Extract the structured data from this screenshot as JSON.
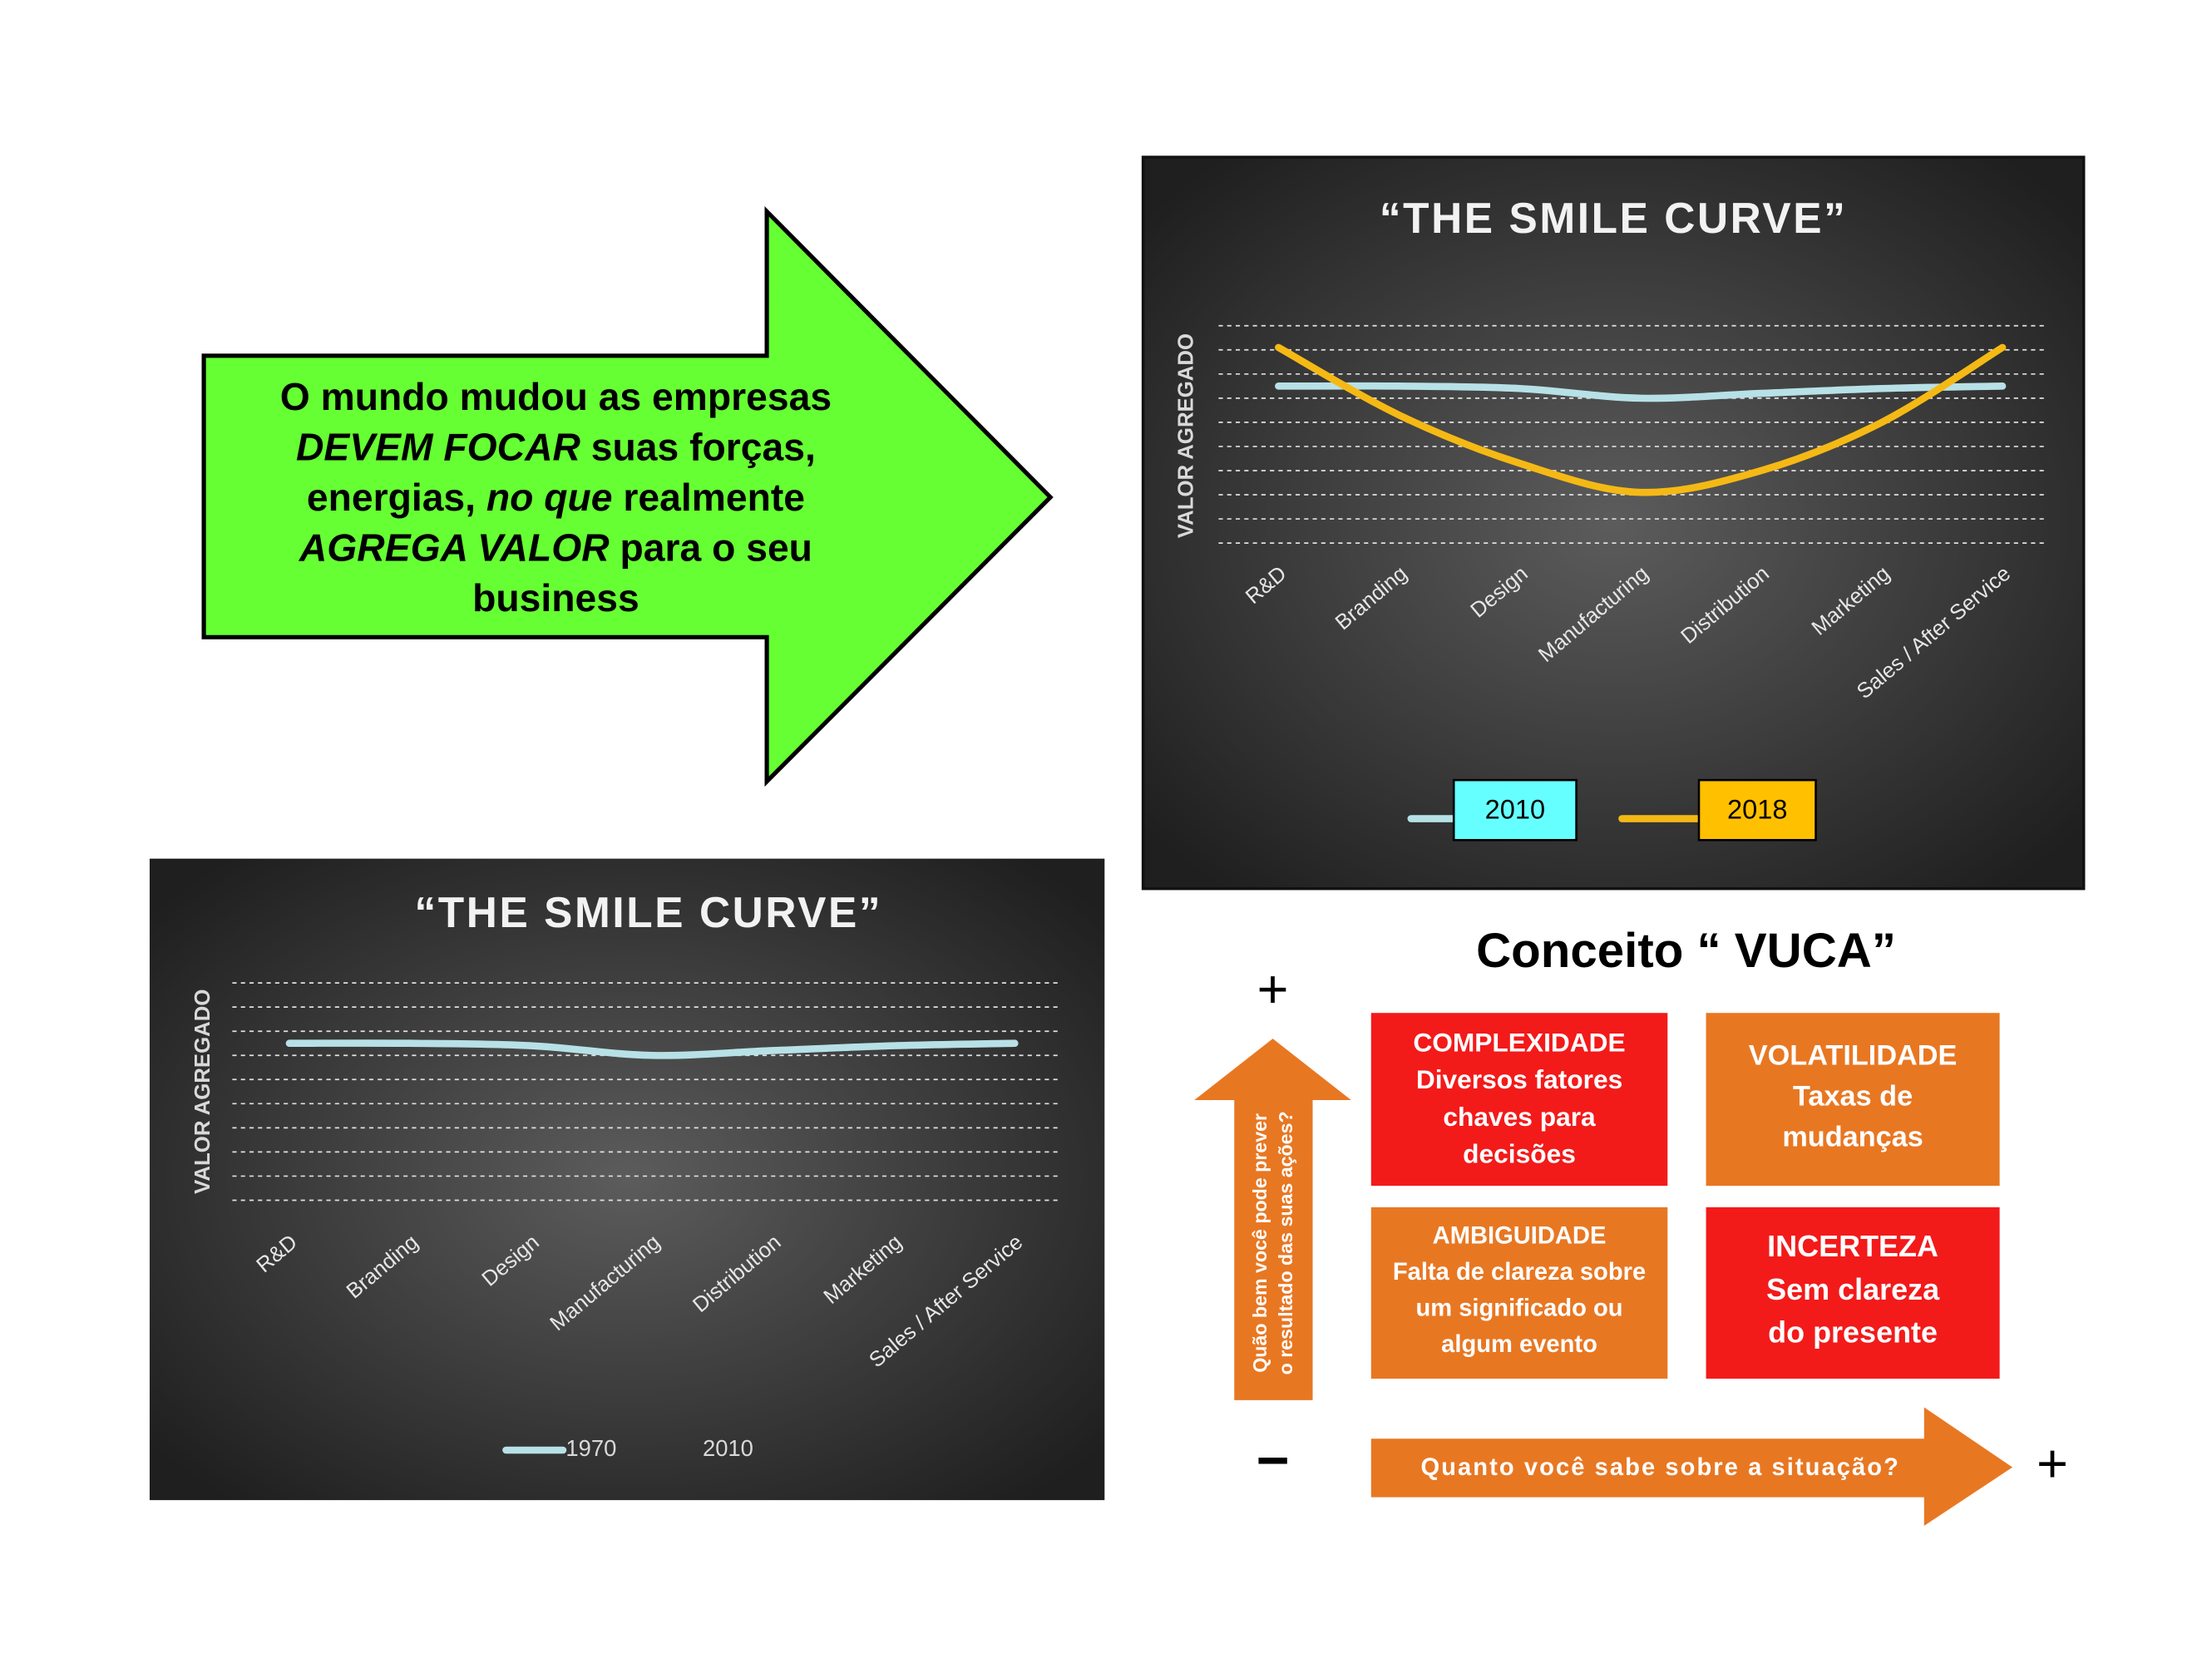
{
  "callout": {
    "lines": [
      [
        {
          "text": "O mundo mudou as empresas",
          "italic": false
        }
      ],
      [
        {
          "text": "DEVEM  FOCAR",
          "italic": true
        },
        {
          "text": " suas forças,",
          "italic": false
        }
      ],
      [
        {
          "text": "energias, ",
          "italic": false
        },
        {
          "text": "no que",
          "italic": true
        },
        {
          "text": " realmente",
          "italic": false
        }
      ],
      [
        {
          "text": "AGREGA VALOR",
          "italic": true
        },
        {
          "text": " para o seu",
          "italic": false
        }
      ],
      [
        {
          "text": "business",
          "italic": false
        }
      ]
    ]
  },
  "chart_data": [
    {
      "type": "line",
      "title": "“THE SMILE CURVE”",
      "y_label": "VALOR AGREGADO",
      "categories": [
        "R&D",
        "Branding",
        "Design",
        "Manufacturing",
        "Distribution",
        "Marketing",
        "Sales / After Service"
      ],
      "series": [
        {
          "name": "2010",
          "color": "#b7e1e6",
          "label_color": "#66ffff",
          "values": [
            7.5,
            7.5,
            7.4,
            7.0,
            7.2,
            7.4,
            7.5
          ]
        },
        {
          "name": "2018",
          "color": "#f5b915",
          "label_color": "#ffc000",
          "values": [
            9.1,
            6.3,
            4.3,
            3.1,
            4.0,
            6.0,
            9.1
          ]
        }
      ],
      "ylim": [
        0,
        10
      ],
      "yticks": [
        1,
        2,
        3,
        4,
        5,
        6,
        7,
        8,
        9,
        10
      ],
      "grid": true
    },
    {
      "type": "line",
      "title": "“THE SMILE CURVE”",
      "y_label": "VALOR AGREGADO",
      "categories": [
        "R&D",
        "Branding",
        "Design",
        "Manufacturing",
        "Distribution",
        "Marketing",
        "Sales / After Service"
      ],
      "series": [
        {
          "name": "1970",
          "color": "#b7e1e6",
          "values": [
            7.5,
            7.5,
            7.4,
            7.0,
            7.2,
            7.4,
            7.5
          ]
        },
        {
          "name": "2010",
          "values": [
            null,
            null,
            null,
            null,
            null,
            null,
            null
          ]
        }
      ],
      "ylim": [
        0,
        10
      ],
      "yticks": [
        1,
        2,
        3,
        4,
        5,
        6,
        7,
        8,
        9,
        10
      ],
      "grid": true
    }
  ],
  "vuca": {
    "title": "Conceito “ VUCA”",
    "top_sign": "+",
    "left_sign": "−",
    "right_sign": "+",
    "y_axis_label": [
      "Quão bem você pode prever",
      "o resultado das suas ações?"
    ],
    "x_axis_label": "Quanto você sabe sobre a situação?",
    "quadrants": [
      {
        "lines": [
          "COMPLEXIDADE",
          "Diversos fatores",
          "chaves para",
          "decisões"
        ]
      },
      {
        "lines": [
          "VOLATILIDADE",
          "Taxas de",
          "mudanças"
        ]
      },
      {
        "lines": [
          "AMBIGUIDADE",
          "Falta de clareza sobre",
          "um significado ou",
          "algum evento"
        ]
      },
      {
        "lines": [
          "INCERTEZA",
          "Sem clareza",
          "do presente"
        ]
      }
    ]
  }
}
